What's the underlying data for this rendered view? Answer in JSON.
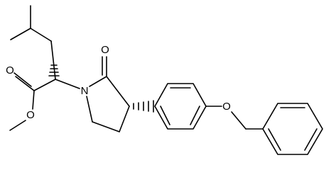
{
  "atoms": [
    "O",
    "O",
    "N",
    "O",
    "O"
  ]
}
